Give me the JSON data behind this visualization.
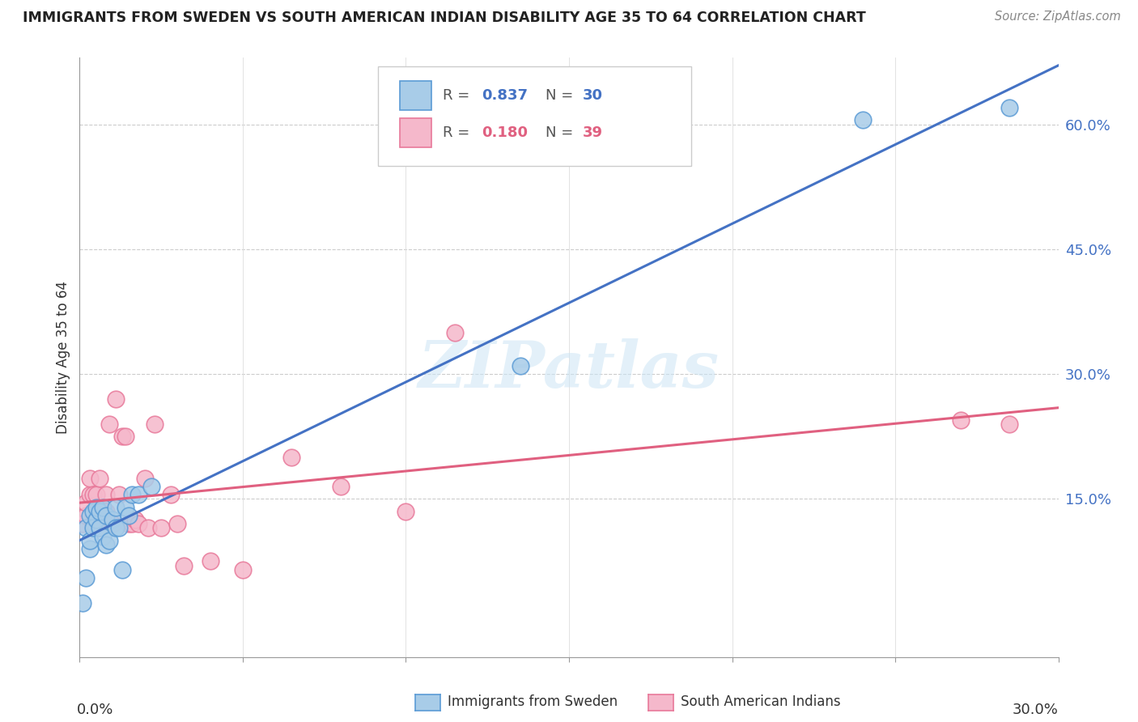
{
  "title": "IMMIGRANTS FROM SWEDEN VS SOUTH AMERICAN INDIAN DISABILITY AGE 35 TO 64 CORRELATION CHART",
  "source": "Source: ZipAtlas.com",
  "ylabel": "Disability Age 35 to 64",
  "ylabel_right_ticks": [
    "15.0%",
    "30.0%",
    "45.0%",
    "60.0%"
  ],
  "ylabel_right_vals": [
    0.15,
    0.3,
    0.45,
    0.6
  ],
  "xlim": [
    0.0,
    0.3
  ],
  "ylim": [
    -0.04,
    0.68
  ],
  "watermark": "ZIPatlas",
  "color_sweden": "#a8cce8",
  "color_sai": "#f5b8cb",
  "color_sweden_edge": "#5b9bd5",
  "color_sai_edge": "#e8799a",
  "color_sweden_line": "#4472c4",
  "color_sai_line": "#e06080",
  "grid_color": "#cccccc",
  "sweden_x": [
    0.001,
    0.002,
    0.002,
    0.003,
    0.003,
    0.003,
    0.004,
    0.004,
    0.005,
    0.005,
    0.006,
    0.006,
    0.007,
    0.007,
    0.008,
    0.008,
    0.009,
    0.01,
    0.011,
    0.011,
    0.012,
    0.013,
    0.014,
    0.015,
    0.016,
    0.018,
    0.022,
    0.135,
    0.24,
    0.285
  ],
  "sweden_y": [
    0.025,
    0.055,
    0.115,
    0.09,
    0.13,
    0.1,
    0.135,
    0.115,
    0.125,
    0.14,
    0.115,
    0.135,
    0.105,
    0.14,
    0.13,
    0.095,
    0.1,
    0.125,
    0.14,
    0.115,
    0.115,
    0.065,
    0.14,
    0.13,
    0.155,
    0.155,
    0.165,
    0.31,
    0.605,
    0.62
  ],
  "sai_x": [
    0.001,
    0.002,
    0.002,
    0.003,
    0.003,
    0.004,
    0.004,
    0.005,
    0.005,
    0.006,
    0.006,
    0.007,
    0.008,
    0.008,
    0.009,
    0.01,
    0.011,
    0.012,
    0.013,
    0.014,
    0.015,
    0.016,
    0.017,
    0.018,
    0.02,
    0.021,
    0.023,
    0.025,
    0.028,
    0.03,
    0.032,
    0.04,
    0.05,
    0.065,
    0.08,
    0.1,
    0.115,
    0.27,
    0.285
  ],
  "sai_y": [
    0.12,
    0.13,
    0.145,
    0.155,
    0.175,
    0.12,
    0.155,
    0.135,
    0.155,
    0.115,
    0.175,
    0.14,
    0.155,
    0.135,
    0.24,
    0.12,
    0.27,
    0.155,
    0.225,
    0.225,
    0.12,
    0.12,
    0.125,
    0.12,
    0.175,
    0.115,
    0.24,
    0.115,
    0.155,
    0.12,
    0.07,
    0.075,
    0.065,
    0.2,
    0.165,
    0.135,
    0.35,
    0.245,
    0.24
  ]
}
